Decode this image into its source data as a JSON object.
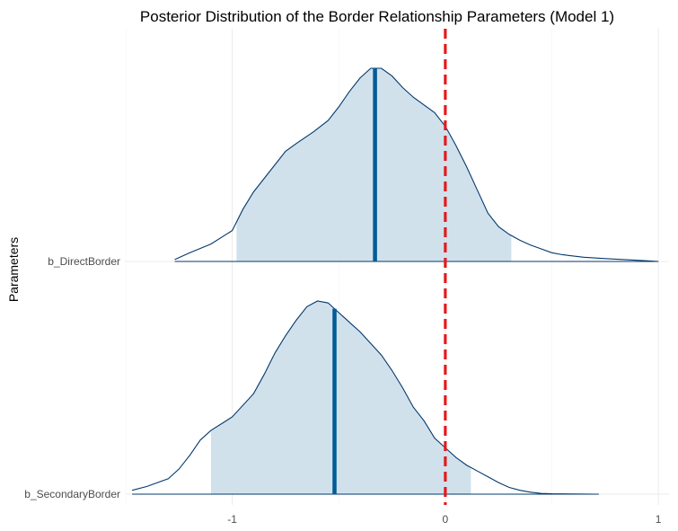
{
  "chart_data": {
    "type": "area",
    "title": "Posterior Distribution of the Border Relationship Parameters (Model 1)",
    "xlabel": "",
    "ylabel": "Parameters",
    "xlim": [
      -1.5,
      1.05
    ],
    "x_ticks": [
      "-1",
      "0",
      "1"
    ],
    "x_tick_values": [
      -1,
      0,
      1
    ],
    "reference_line": {
      "x": 0,
      "color": "#e41a1c",
      "style": "dashed"
    },
    "colors": {
      "fill": "#d1e1ec",
      "outline": "#03396c",
      "median": "#005b96"
    },
    "series": [
      {
        "name": "b_DirectBorder",
        "median": -0.33,
        "interval": [
          -0.98,
          0.31
        ],
        "density": {
          "x": [
            -1.27,
            -1.2,
            -1.1,
            -1.0,
            -0.95,
            -0.9,
            -0.8,
            -0.75,
            -0.7,
            -0.62,
            -0.55,
            -0.5,
            -0.45,
            -0.4,
            -0.35,
            -0.3,
            -0.25,
            -0.2,
            -0.15,
            -0.1,
            -0.05,
            0.0,
            0.05,
            0.1,
            0.15,
            0.2,
            0.25,
            0.3,
            0.35,
            0.4,
            0.45,
            0.5,
            0.55,
            0.6,
            0.65,
            0.75,
            0.85,
            0.9,
            0.95,
            1.0
          ],
          "y": [
            0.01,
            0.045,
            0.09,
            0.16,
            0.27,
            0.36,
            0.5,
            0.57,
            0.61,
            0.67,
            0.73,
            0.8,
            0.88,
            0.95,
            1.0,
            1.0,
            0.96,
            0.9,
            0.85,
            0.81,
            0.77,
            0.7,
            0.6,
            0.49,
            0.37,
            0.25,
            0.18,
            0.14,
            0.11,
            0.085,
            0.065,
            0.045,
            0.035,
            0.028,
            0.022,
            0.015,
            0.009,
            0.006,
            0.003,
            0.0
          ]
        }
      },
      {
        "name": "b_SecondaryBorder",
        "median": -0.52,
        "interval": [
          -1.1,
          0.12
        ],
        "density": {
          "x": [
            -1.47,
            -1.4,
            -1.3,
            -1.25,
            -1.2,
            -1.15,
            -1.1,
            -1.0,
            -0.9,
            -0.85,
            -0.8,
            -0.75,
            -0.7,
            -0.65,
            -0.6,
            -0.55,
            -0.52,
            -0.48,
            -0.44,
            -0.4,
            -0.35,
            -0.3,
            -0.25,
            -0.2,
            -0.15,
            -0.1,
            -0.05,
            0.0,
            0.05,
            0.1,
            0.15,
            0.2,
            0.25,
            0.3,
            0.35,
            0.4,
            0.45,
            0.5,
            0.6,
            0.7,
            0.72
          ],
          "y": [
            0.02,
            0.04,
            0.08,
            0.13,
            0.2,
            0.28,
            0.33,
            0.4,
            0.52,
            0.62,
            0.73,
            0.82,
            0.9,
            0.97,
            1.0,
            0.99,
            0.96,
            0.92,
            0.88,
            0.84,
            0.78,
            0.72,
            0.64,
            0.55,
            0.45,
            0.38,
            0.29,
            0.24,
            0.19,
            0.15,
            0.12,
            0.09,
            0.06,
            0.035,
            0.02,
            0.01,
            0.004,
            0.002,
            0.001,
            0.0,
            0.0
          ]
        }
      }
    ]
  }
}
